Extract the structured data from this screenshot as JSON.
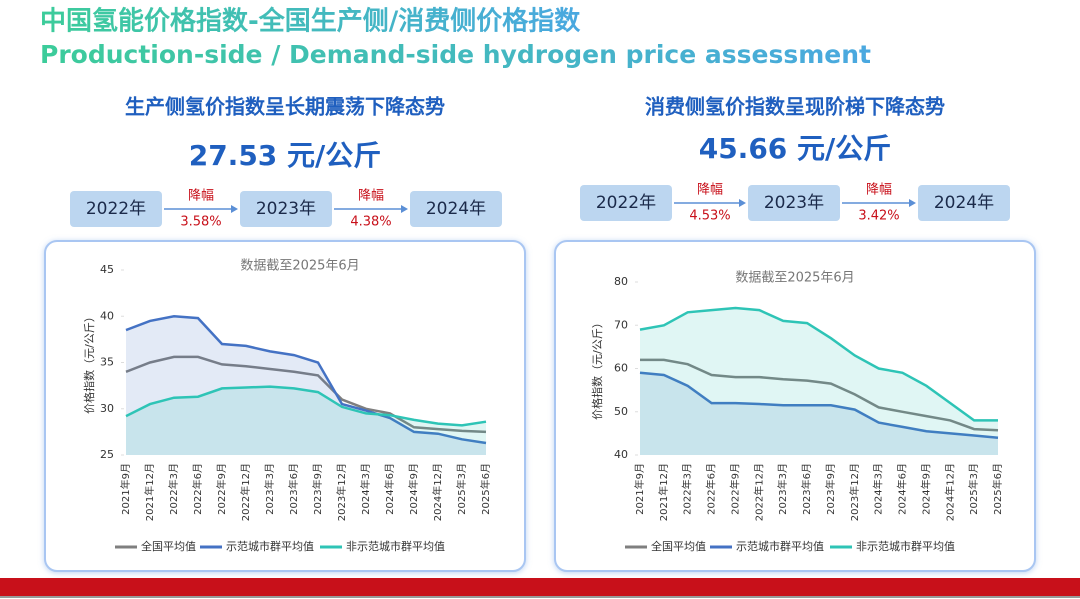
{
  "header": {
    "title": "中国氢能价格指数-全国生产侧/消费侧价格指数",
    "subtitle": "Production-side / Demand-side hydrogen price assessment"
  },
  "panels": [
    {
      "heading": "生产侧氢价指数呈长期震荡下降态势",
      "price": "27.53 元/公斤",
      "years": [
        "2022年",
        "2023年",
        "2024年"
      ],
      "drops": [
        {
          "label": "降幅",
          "value": "3.58%"
        },
        {
          "label": "降幅",
          "value": "4.38%"
        }
      ]
    },
    {
      "heading": "消费侧氢价指数呈现阶梯下降态势",
      "price": "45.66 元/公斤",
      "years": [
        "2022年",
        "2023年",
        "2024年"
      ],
      "drops": [
        {
          "label": "降幅",
          "value": "4.53%"
        },
        {
          "label": "降幅",
          "value": "3.42%"
        }
      ]
    }
  ],
  "chart_data": [
    {
      "type": "line",
      "annotation": "数据截至2025年6月",
      "y_label": "价格指数（元/公斤）",
      "categories": [
        "2021年9月",
        "2021年12月",
        "2022年3月",
        "2022年6月",
        "2022年9月",
        "2022年12月",
        "2023年3月",
        "2023年6月",
        "2023年9月",
        "2023年12月",
        "2024年3月",
        "2024年6月",
        "2024年9月",
        "2024年12月",
        "2025年3月",
        "2025年6月"
      ],
      "ylim": [
        25,
        45
      ],
      "yticks": [
        25,
        30,
        35,
        40,
        45
      ],
      "series": [
        {
          "name": "全国平均值",
          "color": "#7f7f7f",
          "values": [
            34,
            35,
            35.6,
            35.6,
            34.8,
            34.6,
            34.3,
            34,
            33.6,
            31,
            30,
            29.5,
            28,
            27.8,
            27.6,
            27.5
          ]
        },
        {
          "name": "示范城市群平均值",
          "color": "#4472c4",
          "values": [
            38.5,
            39.5,
            40,
            39.8,
            37,
            36.8,
            36.2,
            35.8,
            35,
            30.5,
            29.8,
            29,
            27.5,
            27.3,
            26.7,
            26.3
          ]
        },
        {
          "name": "非示范城市群平均值",
          "color": "#2ec4b6",
          "values": [
            29.2,
            30.5,
            31.2,
            31.3,
            32.2,
            32.3,
            32.4,
            32.2,
            31.8,
            30.2,
            29.5,
            29.3,
            28.8,
            28.4,
            28.2,
            28.6
          ]
        }
      ]
    },
    {
      "type": "line",
      "annotation": "数据截至2025年6月",
      "y_label": "价格指数（元/公斤）",
      "categories": [
        "2021年9月",
        "2021年12月",
        "2022年3月",
        "2022年6月",
        "2022年9月",
        "2022年12月",
        "2023年3月",
        "2023年6月",
        "2023年9月",
        "2023年12月",
        "2024年3月",
        "2024年6月",
        "2024年9月",
        "2024年12月",
        "2025年3月",
        "2025年6月"
      ],
      "ylim": [
        40,
        80
      ],
      "yticks": [
        40,
        50,
        60,
        70,
        80
      ],
      "series": [
        {
          "name": "全国平均值",
          "color": "#7f7f7f",
          "values": [
            62,
            62,
            61,
            58.5,
            58,
            58,
            57.5,
            57.2,
            56.5,
            54,
            51,
            50,
            49,
            48,
            46,
            45.7
          ]
        },
        {
          "name": "示范城市群平均值",
          "color": "#4472c4",
          "values": [
            59,
            58.5,
            56,
            52,
            52,
            51.8,
            51.5,
            51.5,
            51.5,
            50.5,
            47.5,
            46.5,
            45.5,
            45,
            44.5,
            44
          ]
        },
        {
          "name": "非示范城市群平均值",
          "color": "#2ec4b6",
          "values": [
            69,
            70,
            73,
            73.5,
            74,
            73.5,
            71,
            70.5,
            67,
            63,
            60,
            59,
            56,
            52,
            48,
            48
          ]
        }
      ]
    }
  ]
}
